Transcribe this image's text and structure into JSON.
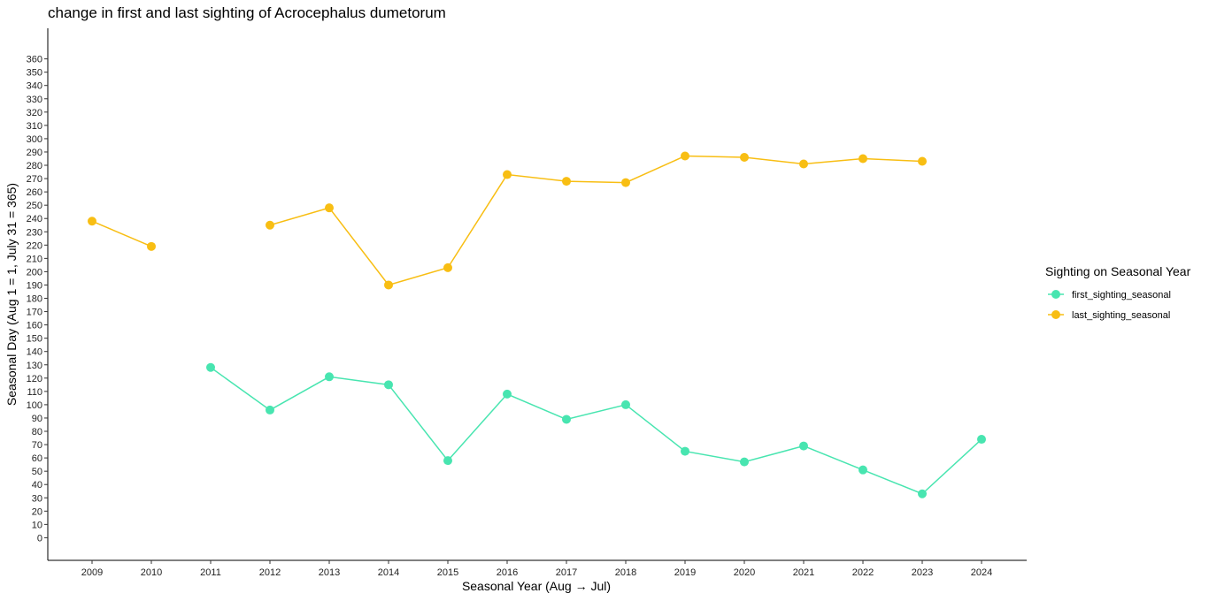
{
  "chart_data": {
    "type": "line",
    "title": "change in first and last sighting of Acrocephalus dumetorum",
    "xlabel": "Seasonal Year (Aug → Jul)",
    "ylabel": "Seasonal Day (Aug 1 = 1, July 31 = 365)",
    "x_categories": [
      "2009",
      "2010",
      "2011",
      "2012",
      "2013",
      "2014",
      "2015",
      "2016",
      "2017",
      "2018",
      "2019",
      "2020",
      "2021",
      "2022",
      "2023",
      "2024"
    ],
    "y_ticks": [
      0,
      10,
      20,
      30,
      40,
      50,
      60,
      70,
      80,
      90,
      100,
      110,
      120,
      130,
      140,
      150,
      160,
      170,
      180,
      190,
      200,
      210,
      220,
      230,
      240,
      250,
      260,
      270,
      280,
      290,
      300,
      310,
      320,
      330,
      340,
      350,
      360
    ],
    "ylim": [
      -17,
      383
    ],
    "legend_title": "Sighting on Seasonal Year",
    "legend_position": "right",
    "grid": false,
    "series": [
      {
        "name": "first_sighting_seasonal",
        "color": "#48E5B0",
        "values": [
          null,
          null,
          128,
          96,
          121,
          115,
          58,
          108,
          89,
          100,
          65,
          57,
          69,
          51,
          33,
          74
        ]
      },
      {
        "name": "last_sighting_seasonal",
        "color": "#F8BE13",
        "values": [
          238,
          219,
          null,
          235,
          248,
          190,
          203,
          273,
          268,
          267,
          287,
          286,
          281,
          285,
          283,
          null
        ]
      }
    ]
  }
}
